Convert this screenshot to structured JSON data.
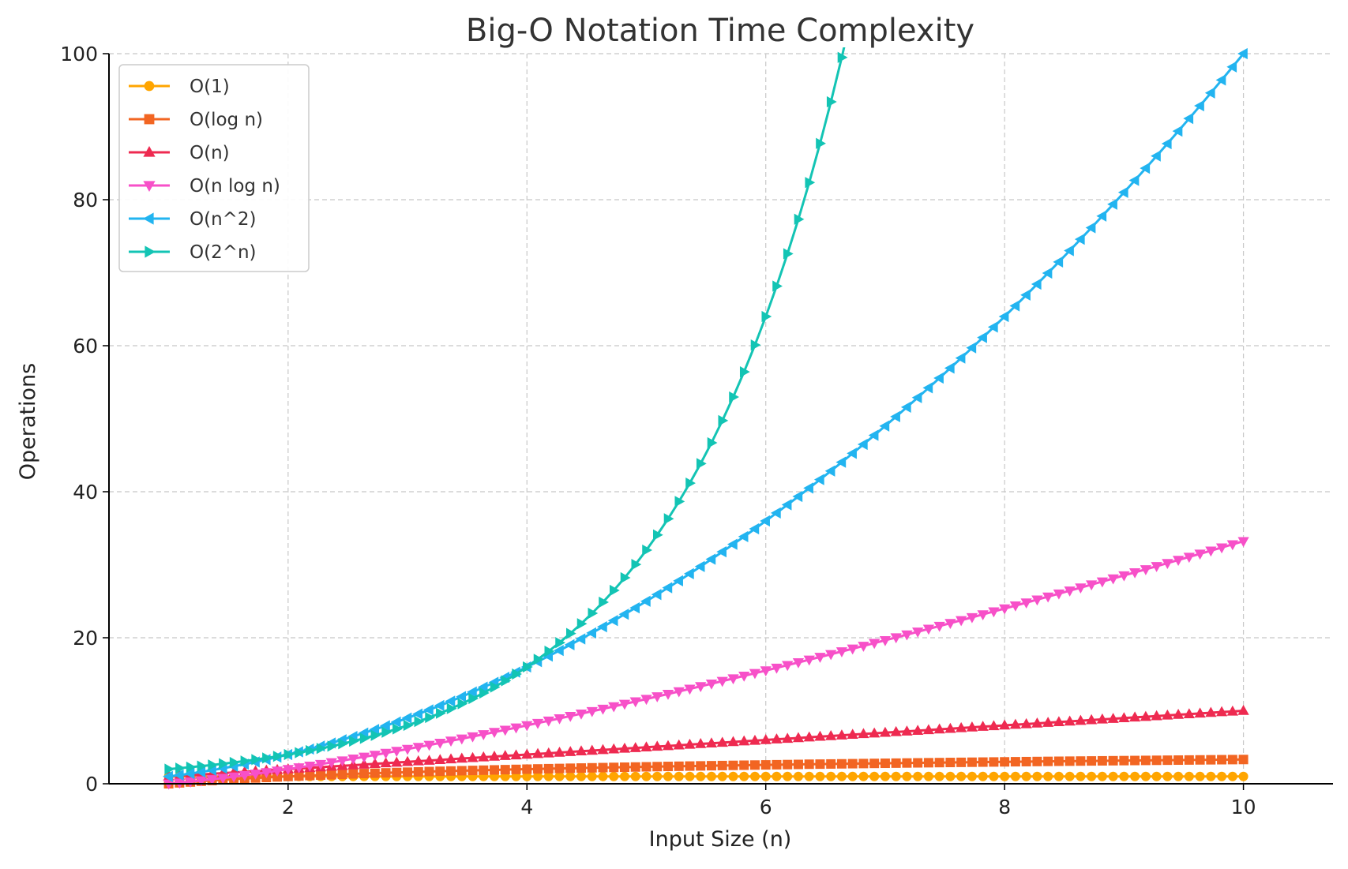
{
  "chart_data": {
    "type": "line",
    "title": "Big-O Notation Time Complexity",
    "xlabel": "Input Size (n)",
    "ylabel": "Operations",
    "xlim": [
      0.5,
      10.75
    ],
    "ylim": [
      0,
      100
    ],
    "x_ticks": [
      2,
      4,
      6,
      8,
      10
    ],
    "x_tick_labels": [
      "2",
      "4",
      "6",
      "8",
      "10"
    ],
    "y_ticks": [
      0,
      20,
      40,
      60,
      80,
      100
    ],
    "y_tick_labels": [
      "0",
      "20",
      "40",
      "60",
      "80",
      "100"
    ],
    "grid": true,
    "legend_position": "upper-left",
    "x_domain": [
      1,
      10
    ],
    "points_per_series": 100,
    "series": [
      {
        "name": "O(1)",
        "color": "#FFA500",
        "marker": "circle",
        "function": "constant"
      },
      {
        "name": "O(log n)",
        "color": "#F26522",
        "marker": "square",
        "function": "log"
      },
      {
        "name": "O(n)",
        "color": "#EE2A50",
        "marker": "triangle-up",
        "function": "linear"
      },
      {
        "name": "O(n log n)",
        "color": "#F750C8",
        "marker": "triangle-down",
        "function": "nlogn"
      },
      {
        "name": "O(n^2)",
        "color": "#22B4F0",
        "marker": "triangle-left",
        "function": "quadratic"
      },
      {
        "name": "O(2^n)",
        "color": "#13C4B4",
        "marker": "triangle-right",
        "function": "exponential"
      }
    ]
  }
}
